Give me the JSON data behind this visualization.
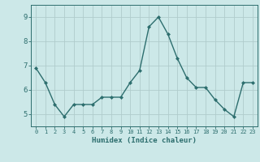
{
  "x": [
    0,
    1,
    2,
    3,
    4,
    5,
    6,
    7,
    8,
    9,
    10,
    11,
    12,
    13,
    14,
    15,
    16,
    17,
    18,
    19,
    20,
    21,
    22,
    23
  ],
  "y": [
    6.9,
    6.3,
    5.4,
    4.9,
    5.4,
    5.4,
    5.4,
    5.7,
    5.7,
    5.7,
    6.3,
    6.8,
    8.6,
    9.0,
    8.3,
    7.3,
    6.5,
    6.1,
    6.1,
    5.6,
    5.2,
    4.9,
    6.3,
    6.3
  ],
  "line_color": "#2d6e6e",
  "marker": "D",
  "marker_size": 2.0,
  "line_width": 1.0,
  "xlabel": "Humidex (Indice chaleur)",
  "xlim": [
    -0.5,
    23.5
  ],
  "ylim": [
    4.5,
    9.5
  ],
  "yticks": [
    5,
    6,
    7,
    8,
    9
  ],
  "xticks": [
    0,
    1,
    2,
    3,
    4,
    5,
    6,
    7,
    8,
    9,
    10,
    11,
    12,
    13,
    14,
    15,
    16,
    17,
    18,
    19,
    20,
    21,
    22,
    23
  ],
  "bg_color": "#cce8e8",
  "grid_color": "#b0cccc",
  "tick_color": "#2d6e6e",
  "label_color": "#2d6e6e",
  "axis_color": "#2d6e6e",
  "xlabel_fontsize": 6.5,
  "tick_fontsize_x": 5.0,
  "tick_fontsize_y": 6.5
}
